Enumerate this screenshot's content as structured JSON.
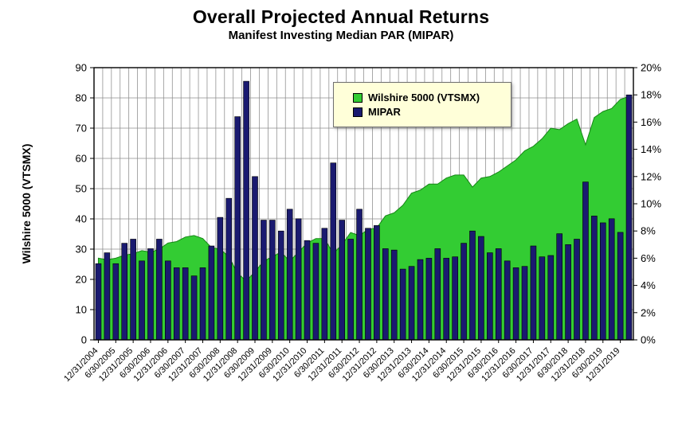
{
  "page": {
    "title": "Overall Projected Annual Returns",
    "subtitle": "Manifest Investing Median PAR (MIPAR)"
  },
  "legend": {
    "items": [
      {
        "label": "Wilshire 5000 (VTSMX)",
        "color": "#33cc33"
      },
      {
        "label": "MIPAR",
        "color": "#1a1a70"
      }
    ]
  },
  "colors": {
    "area_fill": "#33cc33",
    "bar_fill": "#1a1a70",
    "bar_stroke": "#000000",
    "grid": "#8c8c8c",
    "axis_frame": "#000000"
  },
  "chart_data": {
    "type": "combo",
    "subtypes": [
      "area",
      "bar"
    ],
    "title": "Overall Projected Annual Returns",
    "subtitle": "Manifest Investing Median PAR (MIPAR)",
    "grid": true,
    "legend_position": "top-center",
    "x": [
      "12/31/2004",
      "3/31/2005",
      "6/30/2005",
      "9/30/2005",
      "12/31/2005",
      "3/31/2006",
      "6/30/2006",
      "9/30/2006",
      "12/31/2006",
      "3/31/2007",
      "6/30/2007",
      "9/30/2007",
      "12/31/2007",
      "3/31/2008",
      "6/30/2008",
      "9/30/2008",
      "12/31/2008",
      "3/31/2009",
      "6/30/2009",
      "9/30/2009",
      "12/31/2009",
      "3/31/2010",
      "6/30/2010",
      "9/30/2010",
      "12/31/2010",
      "3/31/2011",
      "6/30/2011",
      "9/30/2011",
      "12/31/2011",
      "3/31/2012",
      "6/30/2012",
      "9/30/2012",
      "12/31/2012",
      "3/31/2013",
      "6/30/2013",
      "9/30/2013",
      "12/31/2013",
      "3/31/2014",
      "6/30/2014",
      "9/30/2014",
      "12/31/2014",
      "3/31/2015",
      "6/30/2015",
      "9/30/2015",
      "12/31/2015",
      "3/31/2016",
      "6/30/2016",
      "9/30/2016",
      "12/31/2016",
      "3/31/2017",
      "6/30/2017",
      "9/30/2017",
      "12/31/2017",
      "3/31/2018",
      "6/30/2018",
      "9/30/2018",
      "12/31/2018",
      "3/31/2019",
      "6/30/2019",
      "9/30/2019",
      "12/31/2019",
      "3/31/2020"
    ],
    "x_label_every": 2,
    "series": [
      {
        "name": "Wilshire 5000 (VTSMX)",
        "type": "area",
        "axis": "left",
        "color": "#33cc33",
        "values": [
          27,
          26.5,
          27,
          28,
          28.5,
          29.5,
          29,
          30,
          32,
          32.5,
          34,
          34.5,
          33.5,
          30.5,
          30,
          27.5,
          22,
          19.5,
          22.5,
          26,
          27.5,
          29,
          26,
          29,
          32,
          33.5,
          33.5,
          28.5,
          31.5,
          35.5,
          34.5,
          36.5,
          37,
          41,
          42,
          44.5,
          48.5,
          49.5,
          51.5,
          51.5,
          53.5,
          54.5,
          54.5,
          50.5,
          53.5,
          54,
          55.5,
          57.5,
          59.5,
          62.5,
          64,
          66.5,
          70,
          69.5,
          71.5,
          73,
          64.5,
          73.5,
          75.5,
          76.5,
          79.5,
          80.5
        ]
      },
      {
        "name": "MIPAR",
        "type": "bar",
        "axis": "right",
        "color": "#1a1a70",
        "unit": "%",
        "values": [
          5.6,
          6.4,
          5.6,
          7.1,
          7.4,
          5.8,
          6.7,
          7.4,
          5.8,
          5.3,
          5.3,
          4.7,
          5.3,
          6.9,
          9.0,
          10.4,
          16.4,
          19.0,
          12.0,
          8.8,
          8.8,
          8.0,
          9.6,
          8.9,
          7.3,
          7.1,
          8.2,
          13.0,
          8.8,
          7.4,
          9.6,
          8.2,
          8.4,
          6.7,
          6.6,
          5.2,
          5.4,
          5.9,
          6.0,
          6.7,
          6.0,
          6.1,
          7.1,
          8.0,
          7.6,
          6.4,
          6.7,
          5.8,
          5.3,
          5.4,
          6.9,
          6.1,
          6.2,
          7.8,
          7.0,
          7.4,
          11.6,
          9.1,
          8.6,
          8.9,
          7.9,
          18.0
        ]
      }
    ],
    "left_axis": {
      "title": "Wilshire 5000 (VTSMX)",
      "min": 0,
      "max": 90,
      "step": 10
    },
    "right_axis": {
      "title": "",
      "min": 0,
      "max": 20,
      "step": 2,
      "format": "percent"
    }
  }
}
